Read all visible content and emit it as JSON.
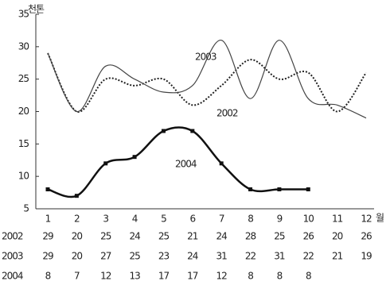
{
  "chart_data": {
    "type": "line",
    "y_unit": "천톤",
    "x_unit": "월",
    "categories": [
      "1",
      "2",
      "3",
      "4",
      "5",
      "6",
      "7",
      "8",
      "9",
      "10",
      "11",
      "12"
    ],
    "ylim": [
      5,
      35
    ],
    "yticks": [
      5,
      10,
      15,
      20,
      25,
      30,
      35
    ],
    "series": [
      {
        "name": "2002",
        "color": "#222222",
        "style": "dotted",
        "values": [
          29,
          20,
          25,
          24,
          25,
          21,
          24,
          28,
          25,
          26,
          20,
          26
        ]
      },
      {
        "name": "2003",
        "color": "#444444",
        "style": "solid",
        "values": [
          29,
          20,
          27,
          25,
          23,
          24,
          31,
          22,
          31,
          22,
          21,
          19
        ]
      },
      {
        "name": "2004",
        "color": "#111111",
        "style": "thick",
        "values": [
          8,
          7,
          12,
          13,
          17,
          17,
          12,
          8,
          8,
          8,
          null,
          null
        ]
      }
    ]
  }
}
